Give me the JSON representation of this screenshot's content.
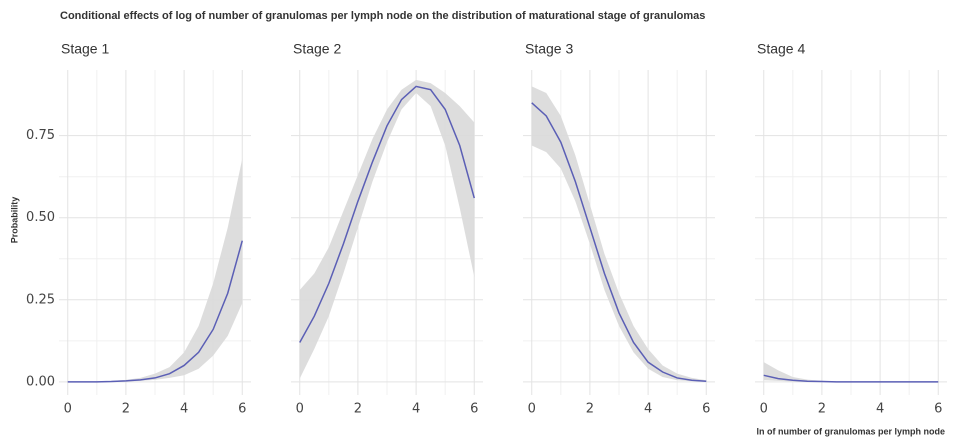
{
  "chart_data": {
    "type": "line",
    "title": "Conditional effects of log of number of granulomas per lymph node on the distribution of maturational stage of granulomas",
    "ylabel": "Probability",
    "xlabel": "ln of number of granulomas per lymph node",
    "line_color": "#5b5fb5",
    "band_color": "#d9d9d9",
    "grid": true,
    "xlim": [
      -0.3,
      6.3
    ],
    "xticks": [
      0,
      2,
      4,
      6
    ],
    "ylim": [
      -0.04,
      0.95
    ],
    "yticks": [
      {
        "value": 0,
        "label": "0.00"
      },
      {
        "value": 0.25,
        "label": "0.25"
      },
      {
        "value": 0.5,
        "label": "0.50"
      },
      {
        "value": 0.75,
        "label": "0.75"
      }
    ],
    "x": [
      0,
      0.5,
      1,
      1.5,
      2,
      2.5,
      3,
      3.5,
      4,
      4.5,
      5,
      5.5,
      6
    ],
    "facets": [
      {
        "title": "Stage 1",
        "values": [
          0,
          0,
          0,
          0.001,
          0.003,
          0.006,
          0.012,
          0.025,
          0.05,
          0.09,
          0.16,
          0.27,
          0.43
        ],
        "lower": [
          0,
          0,
          0,
          0,
          0.001,
          0.003,
          0.006,
          0.012,
          0.02,
          0.04,
          0.08,
          0.14,
          0.24
        ],
        "upper": [
          0,
          0,
          0.001,
          0.003,
          0.006,
          0.012,
          0.025,
          0.045,
          0.09,
          0.17,
          0.3,
          0.47,
          0.68
        ]
      },
      {
        "title": "Stage 2",
        "values": [
          0.12,
          0.2,
          0.3,
          0.42,
          0.55,
          0.67,
          0.78,
          0.86,
          0.9,
          0.89,
          0.83,
          0.72,
          0.56
        ],
        "lower": [
          0.01,
          0.1,
          0.2,
          0.33,
          0.47,
          0.61,
          0.73,
          0.83,
          0.88,
          0.84,
          0.72,
          0.53,
          0.32
        ],
        "upper": [
          0.28,
          0.33,
          0.41,
          0.52,
          0.63,
          0.74,
          0.83,
          0.89,
          0.92,
          0.91,
          0.88,
          0.84,
          0.79
        ]
      },
      {
        "title": "Stage 3",
        "values": [
          0.85,
          0.81,
          0.73,
          0.61,
          0.47,
          0.33,
          0.21,
          0.12,
          0.06,
          0.03,
          0.012,
          0.005,
          0.002
        ],
        "lower": [
          0.72,
          0.7,
          0.65,
          0.55,
          0.42,
          0.28,
          0.17,
          0.09,
          0.04,
          0.015,
          0.005,
          0.002,
          0.001
        ],
        "upper": [
          0.9,
          0.88,
          0.81,
          0.69,
          0.54,
          0.39,
          0.27,
          0.17,
          0.1,
          0.05,
          0.025,
          0.012,
          0.005
        ]
      },
      {
        "title": "Stage 4",
        "values": [
          0.02,
          0.01,
          0.005,
          0.002,
          0.001,
          0,
          0,
          0,
          0,
          0,
          0,
          0,
          0
        ],
        "lower": [
          0.005,
          0.003,
          0.001,
          0,
          0,
          0,
          0,
          0,
          0,
          0,
          0,
          0,
          0
        ],
        "upper": [
          0.06,
          0.035,
          0.015,
          0.007,
          0.003,
          0.001,
          0,
          0,
          0,
          0,
          0,
          0,
          0
        ]
      }
    ]
  }
}
